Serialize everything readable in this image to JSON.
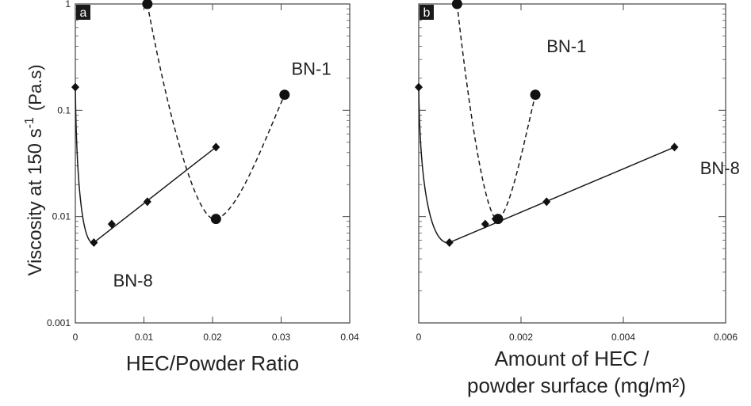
{
  "figure": {
    "ylabel": "Viscosity at 150 s",
    "ylabel_sup": "-1",
    "ylabel_unit": "(Pa.s)"
  },
  "chart_data": [
    {
      "type": "scatter",
      "panel_label": "a",
      "xlabel": "HEC/Powder Ratio",
      "xlim": [
        0,
        0.04
      ],
      "ylim": [
        0.001,
        1
      ],
      "yscale": "log",
      "xticks": [
        "0",
        "0.01",
        "0.02",
        "0.03",
        "0.04"
      ],
      "yticks": [
        "0.001",
        "0.01",
        "0.1",
        "1"
      ],
      "series": [
        {
          "name": "BN-8",
          "marker": "diamond",
          "line": "solid",
          "x": [
            0,
            0.0027,
            0.0053,
            0.0105,
            0.0205
          ],
          "y": [
            0.165,
            0.0057,
            0.0085,
            0.0138,
            0.045
          ],
          "label_text": "BN-8",
          "label_at": [
            0.0055,
            0.0022
          ]
        },
        {
          "name": "BN-1",
          "marker": "circle",
          "line": "dashed",
          "x": [
            0.0105,
            0.0205,
            0.0305
          ],
          "y": [
            1.0,
            0.0095,
            0.14
          ],
          "label_text": "BN-1",
          "label_at": [
            0.0315,
            0.215
          ]
        }
      ]
    },
    {
      "type": "scatter",
      "panel_label": "b",
      "xlabel": "Amount of HEC /",
      "xlabel2": "powder surface (mg/m²)",
      "xlim": [
        0,
        0.006
      ],
      "ylim": [
        0.001,
        1
      ],
      "yscale": "log",
      "xticks": [
        "0",
        "0.002",
        "0.004",
        "0.006"
      ],
      "yticks": [
        "0.001",
        "0.01",
        "0.1",
        "1"
      ],
      "series": [
        {
          "name": "BN-8",
          "marker": "diamond",
          "line": "solid",
          "x": [
            0,
            0.0006,
            0.0013,
            0.0015,
            0.0025,
            0.005
          ],
          "y": [
            0.165,
            0.0057,
            0.0085,
            0.0095,
            0.0138,
            0.045
          ],
          "label_text": "BN-8",
          "label_at": [
            0.0055,
            0.025
          ]
        },
        {
          "name": "BN-1",
          "marker": "circle",
          "line": "dashed",
          "x": [
            0.00075,
            0.00155,
            0.00228
          ],
          "y": [
            1.0,
            0.0095,
            0.14
          ],
          "label_text": "BN-1",
          "label_at": [
            0.0025,
            0.35
          ]
        }
      ]
    }
  ]
}
